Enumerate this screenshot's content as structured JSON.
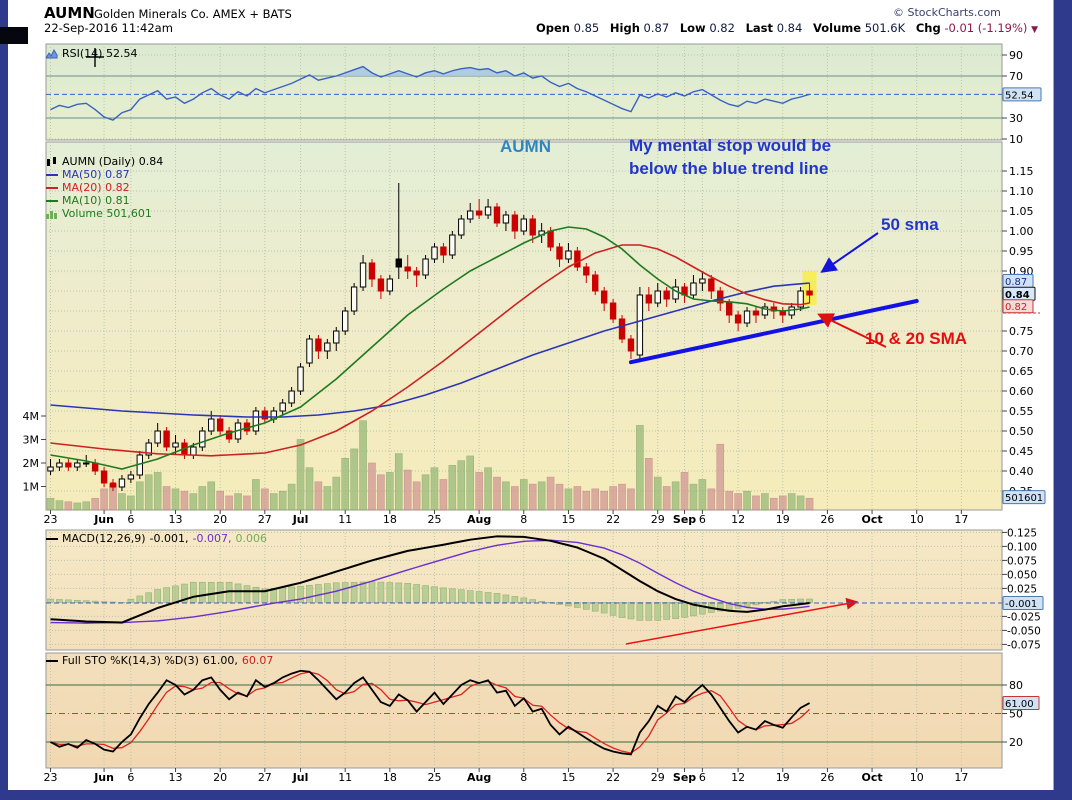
{
  "header": {
    "symbol": "AUMN",
    "company": "Golden Minerals Co. AMEX + BATS",
    "datetime": "22-Sep-2016 11:42am",
    "copyright": "© StockCharts.com",
    "quote": {
      "open_label": "Open",
      "open": "0.85",
      "high_label": "High",
      "high": "0.87",
      "low_label": "Low",
      "low": "0.82",
      "last_label": "Last",
      "last": "0.84",
      "volume_label": "Volume",
      "volume": "501.6K",
      "chg_label": "Chg",
      "chg": "-0.01 (-1.19%)",
      "chg_arrow": "▼"
    }
  },
  "legends": {
    "rsi": "RSI(14) 52.54",
    "price_title": "AUMN (Daily) 0.84",
    "ma50": "MA(50) 0.87",
    "ma20": "MA(20) 0.82",
    "ma10": "MA(10) 0.81",
    "volume": "Volume 501,601",
    "macd_label": "MACD(12,26,9)",
    "macd_v1": "-0.001,",
    "macd_v2": "-0.007,",
    "macd_v3": "0.006",
    "sto_label": "Full STO %K(14,3) %D(3)",
    "sto_v1": "61.00,",
    "sto_v2": "60.07"
  },
  "annotations": {
    "symbol_note": "AUMN",
    "stop_note_line1": "My mental stop would be",
    "stop_note_line2": "below the blue trend line",
    "sma50_note": "50 sma",
    "sma1020_note": "10 & 20 SMA"
  },
  "axis_boxes": {
    "rsi": "52.54",
    "ma50": "0.87",
    "last": "0.84",
    "ma20": "0.82",
    "volume": "501601",
    "macd": "-0.001",
    "sto": "61.00"
  },
  "colors": {
    "ma50": "#2a35b8",
    "ma20": "#cc2222",
    "ma10": "#1e7a1e",
    "trendline": "#1212e6",
    "annotation_blue": "#2236c9",
    "annotation_red": "#e01010",
    "rsi_line": "#3a62c0",
    "macd_line": "#000000",
    "macd_signal": "#6a2fd0",
    "sto_k": "#000000",
    "sto_d": "#dd2222",
    "frame": "#303a8c"
  },
  "chart_data": {
    "type": "candlestick",
    "title": "AUMN Golden Minerals Co. Daily",
    "ylim": [
      0.325,
      1.175
    ],
    "x_ticks": [
      {
        "label": "23",
        "i": 0,
        "bold": false
      },
      {
        "label": "Jun",
        "i": 6,
        "bold": true
      },
      {
        "label": "6",
        "i": 9,
        "bold": false
      },
      {
        "label": "13",
        "i": 14,
        "bold": false
      },
      {
        "label": "20",
        "i": 19,
        "bold": false
      },
      {
        "label": "27",
        "i": 24,
        "bold": false
      },
      {
        "label": "Jul",
        "i": 28,
        "bold": true
      },
      {
        "label": "11",
        "i": 33,
        "bold": false
      },
      {
        "label": "18",
        "i": 38,
        "bold": false
      },
      {
        "label": "25",
        "i": 43,
        "bold": false
      },
      {
        "label": "Aug",
        "i": 48,
        "bold": true
      },
      {
        "label": "8",
        "i": 53,
        "bold": false
      },
      {
        "label": "15",
        "i": 58,
        "bold": false
      },
      {
        "label": "22",
        "i": 63,
        "bold": false
      },
      {
        "label": "29",
        "i": 68,
        "bold": false
      },
      {
        "label": "Sep",
        "i": 71,
        "bold": true
      },
      {
        "label": "6",
        "i": 73,
        "bold": false
      },
      {
        "label": "12",
        "i": 77,
        "bold": false
      },
      {
        "label": "19",
        "i": 82,
        "bold": false
      },
      {
        "label": "26",
        "i": 87,
        "bold": false
      },
      {
        "label": "Oct",
        "i": 92,
        "bold": true
      },
      {
        "label": "10",
        "i": 97,
        "bold": false
      },
      {
        "label": "17",
        "i": 102,
        "bold": false
      }
    ],
    "price_ticks": [
      "1.15",
      "1.10",
      "1.05",
      "1.00",
      "0.95",
      "0.90",
      "0.75",
      "0.70",
      "0.65",
      "0.60",
      "0.55",
      "0.50",
      "0.45",
      "0.40",
      "0.35"
    ],
    "vol_ticks": [
      {
        "label": "4M",
        "v": 4
      },
      {
        "label": "3M",
        "v": 3
      },
      {
        "label": "2M",
        "v": 2
      },
      {
        "label": "1M",
        "v": 1
      }
    ],
    "rsi_ticks": [
      "90",
      "70",
      "30",
      "10"
    ],
    "macd_ticks": [
      "0.125",
      "0.100",
      "0.075",
      "0.050",
      "0.025",
      "-0.025",
      "-0.050",
      "-0.075"
    ],
    "sto_ticks": [
      "80",
      "50",
      "20"
    ],
    "rsi_current": 52.54,
    "macd_current": -0.001,
    "sto_current": 61.0,
    "ohlc": [
      [
        0.4,
        0.43,
        0.39,
        0.41
      ],
      [
        0.41,
        0.43,
        0.4,
        0.42
      ],
      [
        0.42,
        0.43,
        0.4,
        0.41
      ],
      [
        0.41,
        0.43,
        0.4,
        0.42
      ],
      [
        0.42,
        0.44,
        0.41,
        0.42
      ],
      [
        0.42,
        0.43,
        0.39,
        0.4
      ],
      [
        0.4,
        0.41,
        0.36,
        0.37
      ],
      [
        0.37,
        0.38,
        0.35,
        0.36
      ],
      [
        0.36,
        0.39,
        0.35,
        0.38
      ],
      [
        0.38,
        0.4,
        0.37,
        0.39
      ],
      [
        0.39,
        0.45,
        0.38,
        0.44
      ],
      [
        0.44,
        0.48,
        0.43,
        0.47
      ],
      [
        0.47,
        0.52,
        0.46,
        0.5
      ],
      [
        0.5,
        0.51,
        0.45,
        0.46
      ],
      [
        0.46,
        0.49,
        0.44,
        0.47
      ],
      [
        0.47,
        0.48,
        0.43,
        0.44
      ],
      [
        0.44,
        0.47,
        0.43,
        0.46
      ],
      [
        0.46,
        0.51,
        0.45,
        0.5
      ],
      [
        0.5,
        0.55,
        0.49,
        0.53
      ],
      [
        0.53,
        0.54,
        0.49,
        0.5
      ],
      [
        0.5,
        0.51,
        0.47,
        0.48
      ],
      [
        0.48,
        0.53,
        0.47,
        0.52
      ],
      [
        0.52,
        0.53,
        0.49,
        0.5
      ],
      [
        0.5,
        0.56,
        0.49,
        0.55
      ],
      [
        0.55,
        0.56,
        0.52,
        0.53
      ],
      [
        0.53,
        0.56,
        0.52,
        0.55
      ],
      [
        0.55,
        0.58,
        0.54,
        0.57
      ],
      [
        0.57,
        0.61,
        0.56,
        0.6
      ],
      [
        0.6,
        0.67,
        0.59,
        0.66
      ],
      [
        0.67,
        0.74,
        0.66,
        0.73
      ],
      [
        0.73,
        0.74,
        0.68,
        0.7
      ],
      [
        0.7,
        0.73,
        0.68,
        0.72
      ],
      [
        0.72,
        0.76,
        0.7,
        0.75
      ],
      [
        0.75,
        0.81,
        0.74,
        0.8
      ],
      [
        0.8,
        0.87,
        0.79,
        0.86
      ],
      [
        0.86,
        0.94,
        0.85,
        0.92
      ],
      [
        0.92,
        0.93,
        0.86,
        0.88
      ],
      [
        0.88,
        0.89,
        0.83,
        0.85
      ],
      [
        0.85,
        0.89,
        0.84,
        0.88
      ],
      [
        0.93,
        1.12,
        0.88,
        0.91
      ],
      [
        0.91,
        0.94,
        0.88,
        0.9
      ],
      [
        0.9,
        0.91,
        0.86,
        0.89
      ],
      [
        0.89,
        0.94,
        0.88,
        0.93
      ],
      [
        0.93,
        0.97,
        0.92,
        0.96
      ],
      [
        0.96,
        0.97,
        0.92,
        0.94
      ],
      [
        0.94,
        1.0,
        0.93,
        0.99
      ],
      [
        0.99,
        1.04,
        0.98,
        1.03
      ],
      [
        1.03,
        1.07,
        1.02,
        1.05
      ],
      [
        1.05,
        1.08,
        1.03,
        1.04
      ],
      [
        1.04,
        1.08,
        1.03,
        1.06
      ],
      [
        1.06,
        1.07,
        1.01,
        1.02
      ],
      [
        1.02,
        1.05,
        1.0,
        1.04
      ],
      [
        1.04,
        1.05,
        0.98,
        1.0
      ],
      [
        1.0,
        1.04,
        0.99,
        1.03
      ],
      [
        1.03,
        1.04,
        0.97,
        0.99
      ],
      [
        0.99,
        1.02,
        0.97,
        1.0
      ],
      [
        1.0,
        1.01,
        0.95,
        0.96
      ],
      [
        0.96,
        0.97,
        0.91,
        0.93
      ],
      [
        0.93,
        0.97,
        0.92,
        0.95
      ],
      [
        0.95,
        0.96,
        0.9,
        0.91
      ],
      [
        0.91,
        0.92,
        0.87,
        0.89
      ],
      [
        0.89,
        0.9,
        0.84,
        0.85
      ],
      [
        0.85,
        0.86,
        0.8,
        0.82
      ],
      [
        0.82,
        0.83,
        0.77,
        0.78
      ],
      [
        0.78,
        0.79,
        0.72,
        0.73
      ],
      [
        0.73,
        0.74,
        0.68,
        0.7
      ],
      [
        0.69,
        0.86,
        0.68,
        0.84
      ],
      [
        0.84,
        0.86,
        0.8,
        0.82
      ],
      [
        0.82,
        0.87,
        0.81,
        0.85
      ],
      [
        0.85,
        0.86,
        0.81,
        0.83
      ],
      [
        0.83,
        0.88,
        0.82,
        0.86
      ],
      [
        0.86,
        0.87,
        0.82,
        0.84
      ],
      [
        0.84,
        0.89,
        0.83,
        0.87
      ],
      [
        0.87,
        0.9,
        0.85,
        0.88
      ],
      [
        0.88,
        0.89,
        0.83,
        0.85
      ],
      [
        0.85,
        0.86,
        0.8,
        0.82
      ],
      [
        0.82,
        0.83,
        0.77,
        0.79
      ],
      [
        0.79,
        0.8,
        0.75,
        0.77
      ],
      [
        0.77,
        0.81,
        0.76,
        0.8
      ],
      [
        0.8,
        0.81,
        0.77,
        0.79
      ],
      [
        0.79,
        0.82,
        0.78,
        0.81
      ],
      [
        0.81,
        0.82,
        0.78,
        0.8
      ],
      [
        0.8,
        0.81,
        0.77,
        0.79
      ],
      [
        0.79,
        0.82,
        0.78,
        0.81
      ],
      [
        0.81,
        0.86,
        0.8,
        0.85
      ],
      [
        0.85,
        0.87,
        0.82,
        0.84
      ]
    ],
    "volume_m": [
      0.5,
      0.4,
      0.35,
      0.3,
      0.35,
      0.5,
      0.9,
      1.1,
      0.7,
      0.6,
      1.2,
      1.5,
      1.6,
      1.0,
      0.9,
      0.8,
      0.7,
      1.0,
      1.2,
      0.8,
      0.6,
      0.7,
      0.6,
      1.3,
      0.9,
      0.7,
      0.8,
      1.1,
      3.0,
      1.8,
      1.2,
      1.0,
      1.4,
      2.2,
      2.6,
      3.8,
      2.0,
      1.5,
      1.6,
      2.4,
      1.7,
      1.2,
      1.5,
      1.8,
      1.3,
      1.9,
      2.1,
      2.3,
      1.6,
      1.8,
      1.4,
      1.2,
      1.0,
      1.3,
      1.1,
      1.2,
      1.4,
      1.1,
      0.9,
      1.0,
      0.8,
      0.9,
      0.8,
      1.0,
      1.1,
      0.9,
      3.6,
      2.2,
      1.4,
      1.0,
      1.2,
      1.6,
      1.1,
      1.3,
      0.9,
      2.8,
      0.8,
      0.7,
      0.8,
      0.6,
      0.7,
      0.5,
      0.6,
      0.7,
      0.6,
      0.5
    ],
    "rsi": [
      38,
      42,
      40,
      43,
      44,
      38,
      31,
      28,
      35,
      38,
      48,
      52,
      56,
      48,
      50,
      44,
      48,
      54,
      58,
      52,
      48,
      55,
      51,
      58,
      54,
      57,
      60,
      63,
      67,
      71,
      66,
      68,
      70,
      73,
      76,
      79,
      73,
      69,
      72,
      75,
      72,
      69,
      73,
      75,
      72,
      75,
      77,
      78,
      76,
      77,
      73,
      75,
      70,
      73,
      68,
      70,
      64,
      60,
      63,
      58,
      55,
      51,
      47,
      43,
      39,
      36,
      52,
      49,
      53,
      50,
      54,
      51,
      55,
      57,
      52,
      47,
      43,
      41,
      46,
      44,
      48,
      46,
      44,
      48,
      50,
      52.54
    ],
    "ma50_anchors": [
      [
        0,
        0.565
      ],
      [
        8,
        0.55
      ],
      [
        16,
        0.54
      ],
      [
        22,
        0.535
      ],
      [
        26,
        0.535
      ],
      [
        30,
        0.54
      ],
      [
        34,
        0.55
      ],
      [
        38,
        0.565
      ],
      [
        42,
        0.59
      ],
      [
        46,
        0.62
      ],
      [
        50,
        0.655
      ],
      [
        54,
        0.69
      ],
      [
        58,
        0.72
      ],
      [
        62,
        0.75
      ],
      [
        66,
        0.775
      ],
      [
        70,
        0.8
      ],
      [
        74,
        0.825
      ],
      [
        78,
        0.848
      ],
      [
        81,
        0.862
      ],
      [
        85,
        0.87
      ]
    ],
    "ma20_anchors": [
      [
        0,
        0.47
      ],
      [
        6,
        0.455
      ],
      [
        12,
        0.443
      ],
      [
        18,
        0.438
      ],
      [
        24,
        0.445
      ],
      [
        28,
        0.465
      ],
      [
        32,
        0.5
      ],
      [
        36,
        0.55
      ],
      [
        40,
        0.61
      ],
      [
        44,
        0.675
      ],
      [
        48,
        0.745
      ],
      [
        52,
        0.815
      ],
      [
        55,
        0.865
      ],
      [
        58,
        0.91
      ],
      [
        61,
        0.945
      ],
      [
        64,
        0.965
      ],
      [
        66,
        0.965
      ],
      [
        68,
        0.955
      ],
      [
        70,
        0.935
      ],
      [
        72,
        0.91
      ],
      [
        74,
        0.885
      ],
      [
        76,
        0.862
      ],
      [
        78,
        0.842
      ],
      [
        80,
        0.828
      ],
      [
        82,
        0.818
      ],
      [
        84,
        0.816
      ],
      [
        85,
        0.82
      ]
    ],
    "ma10_anchors": [
      [
        0,
        0.44
      ],
      [
        4,
        0.425
      ],
      [
        8,
        0.405
      ],
      [
        12,
        0.43
      ],
      [
        16,
        0.465
      ],
      [
        20,
        0.495
      ],
      [
        24,
        0.52
      ],
      [
        28,
        0.56
      ],
      [
        32,
        0.63
      ],
      [
        36,
        0.71
      ],
      [
        40,
        0.79
      ],
      [
        44,
        0.855
      ],
      [
        47,
        0.9
      ],
      [
        50,
        0.935
      ],
      [
        53,
        0.97
      ],
      [
        56,
        1.0
      ],
      [
        58,
        1.01
      ],
      [
        60,
        1.005
      ],
      [
        62,
        0.985
      ],
      [
        64,
        0.955
      ],
      [
        66,
        0.915
      ],
      [
        68,
        0.88
      ],
      [
        70,
        0.85
      ],
      [
        72,
        0.83
      ],
      [
        74,
        0.825
      ],
      [
        76,
        0.823
      ],
      [
        78,
        0.818
      ],
      [
        80,
        0.805
      ],
      [
        82,
        0.8
      ],
      [
        84,
        0.805
      ],
      [
        85,
        0.81
      ]
    ],
    "macd_line_anchors": [
      [
        0,
        -0.03
      ],
      [
        4,
        -0.034
      ],
      [
        8,
        -0.036
      ],
      [
        12,
        -0.01
      ],
      [
        16,
        0.01
      ],
      [
        20,
        0.02
      ],
      [
        24,
        0.02
      ],
      [
        28,
        0.035
      ],
      [
        32,
        0.055
      ],
      [
        36,
        0.075
      ],
      [
        40,
        0.092
      ],
      [
        44,
        0.103
      ],
      [
        47,
        0.112
      ],
      [
        50,
        0.118
      ],
      [
        53,
        0.117
      ],
      [
        56,
        0.11
      ],
      [
        59,
        0.098
      ],
      [
        62,
        0.078
      ],
      [
        64,
        0.058
      ],
      [
        66,
        0.038
      ],
      [
        68,
        0.02
      ],
      [
        70,
        0.006
      ],
      [
        72,
        -0.004
      ],
      [
        74,
        -0.01
      ],
      [
        76,
        -0.015
      ],
      [
        78,
        -0.017
      ],
      [
        80,
        -0.013
      ],
      [
        82,
        -0.007
      ],
      [
        84,
        -0.003
      ],
      [
        85,
        -0.001
      ]
    ],
    "macd_signal_anchors": [
      [
        0,
        -0.036
      ],
      [
        4,
        -0.037
      ],
      [
        8,
        -0.036
      ],
      [
        12,
        -0.033
      ],
      [
        16,
        -0.026
      ],
      [
        20,
        -0.016
      ],
      [
        24,
        -0.004
      ],
      [
        28,
        0.006
      ],
      [
        32,
        0.02
      ],
      [
        36,
        0.038
      ],
      [
        40,
        0.058
      ],
      [
        44,
        0.077
      ],
      [
        47,
        0.091
      ],
      [
        50,
        0.102
      ],
      [
        53,
        0.109
      ],
      [
        56,
        0.111
      ],
      [
        59,
        0.107
      ],
      [
        62,
        0.097
      ],
      [
        64,
        0.085
      ],
      [
        66,
        0.07
      ],
      [
        68,
        0.052
      ],
      [
        70,
        0.035
      ],
      [
        72,
        0.02
      ],
      [
        74,
        0.008
      ],
      [
        76,
        -0.002
      ],
      [
        78,
        -0.009
      ],
      [
        80,
        -0.012
      ],
      [
        82,
        -0.012
      ],
      [
        84,
        -0.009
      ],
      [
        85,
        -0.007
      ]
    ],
    "sto_k": [
      20,
      15,
      18,
      14,
      22,
      18,
      12,
      10,
      20,
      28,
      45,
      60,
      72,
      85,
      80,
      70,
      75,
      85,
      88,
      75,
      65,
      72,
      68,
      85,
      78,
      82,
      88,
      92,
      95,
      94,
      85,
      75,
      65,
      72,
      82,
      88,
      75,
      62,
      58,
      70,
      64,
      52,
      62,
      72,
      60,
      70,
      80,
      85,
      82,
      85,
      72,
      74,
      58,
      66,
      52,
      55,
      38,
      28,
      36,
      30,
      24,
      18,
      13,
      10,
      8,
      7,
      30,
      42,
      58,
      52,
      68,
      62,
      72,
      80,
      70,
      56,
      42,
      30,
      36,
      33,
      42,
      38,
      35,
      46,
      56,
      61
    ],
    "trendline": {
      "i1": 65,
      "p1": 0.672,
      "i2": 97,
      "p2": 0.825
    },
    "highlight_index": 85
  }
}
